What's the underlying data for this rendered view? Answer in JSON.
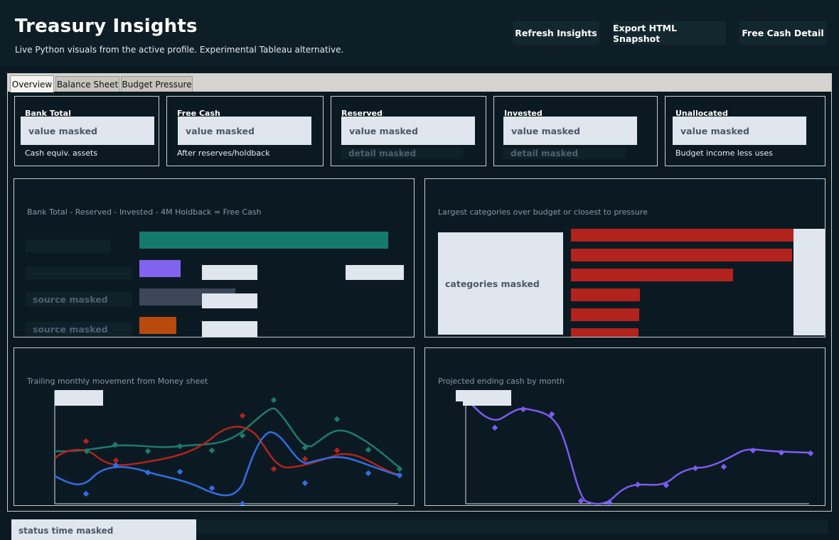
{
  "header": {
    "title": "Treasury Insights",
    "subtitle": "Live Python visuals from the active profile. Experimental Tableau alternative.",
    "buttons": {
      "refresh": "Refresh Insights",
      "export": "Export HTML Snapshot",
      "free_cash": "Free Cash Detail"
    }
  },
  "tabs": [
    "Overview",
    "Balance Sheet",
    "Budget Pressure"
  ],
  "active_tab": "Overview",
  "kpis": [
    {
      "label": "Bank Total",
      "value": "value masked",
      "sub": "Cash equiv. assets"
    },
    {
      "label": "Free Cash",
      "value": "value masked",
      "sub": "After reserves/holdback"
    },
    {
      "label": "Reserved",
      "value": "value masked",
      "detail": "detail masked"
    },
    {
      "label": "Invested",
      "value": "value masked",
      "detail": "detail masked"
    },
    {
      "label": "Unallocated",
      "value": "value masked",
      "sub": "Budget income less uses"
    }
  ],
  "free_cash_panel": {
    "subtitle": "Bank Total - Reserved - Invested - 4M Holdback = Free Cash",
    "source_label_1": "source masked",
    "source_label_2": "source masked",
    "colors": {
      "bank": "#167a6e",
      "reserved": "#8064f0",
      "invested": "#3c4658",
      "holdback": "#b8490f"
    },
    "bar_levels": {
      "bank": 1.0,
      "reserved": 0.165,
      "invested": 0.385,
      "holdback": 0.148
    }
  },
  "pressure_panel": {
    "subtitle": "Largest categories over budget or closest to pressure",
    "categories_label": "categories masked",
    "bar_color": "#b3231d",
    "bar_levels": [
      1.0,
      0.995,
      0.728,
      0.31,
      0.306,
      0.302
    ]
  },
  "trend_panel": {
    "subtitle": "Trailing monthly movement from Money sheet",
    "series_colors": [
      "#1f7a6e",
      "#b3231d",
      "#2f6ee6"
    ]
  },
  "forecast_panel": {
    "subtitle": "Projected ending cash by month",
    "series_color": "#7b5cf0"
  },
  "status": {
    "text": "status time masked"
  }
}
